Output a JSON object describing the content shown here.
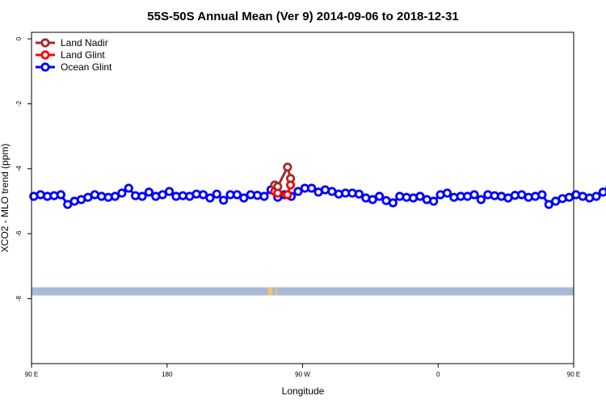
{
  "chart_data": {
    "type": "line",
    "title": "55S-50S Annual Mean (Ver 9)   2014-09-06 to 2018-12-31",
    "xlabel": "Longitude",
    "ylabel": "XCO2 - MLO trend (ppm)",
    "x_tick_labels": [
      "90 E",
      "180",
      "90 W",
      "0",
      "90 E",
      "180"
    ],
    "y_tick_labels": [
      "0",
      "-2",
      "-4",
      "-6",
      "-8"
    ],
    "ylim": [
      -10,
      0.2
    ],
    "xlim": [
      90,
      450
    ],
    "x_ticks": [
      90,
      180,
      270,
      360,
      450,
      540
    ],
    "y_ticks": [
      0,
      -2,
      -4,
      -6,
      -8
    ],
    "legend_position": "top-left",
    "series": [
      {
        "name": "Land Nadir",
        "color": "#a52a2a",
        "points": [
          [
            251.5,
            -4.5
          ],
          [
            253.5,
            -4.55
          ],
          [
            260,
            -3.95
          ],
          [
            262,
            -4.3
          ]
        ]
      },
      {
        "name": "Land Glint",
        "color": "#ff0000",
        "points": [
          [
            251.5,
            -4.7
          ],
          [
            253.5,
            -4.75
          ],
          [
            260,
            -4.8
          ],
          [
            262,
            -4.5
          ]
        ]
      },
      {
        "name": "Ocean Glint",
        "color": "#0000ff",
        "points": [
          [
            91.5,
            -4.85
          ],
          [
            96,
            -4.8
          ],
          [
            100.5,
            -4.85
          ],
          [
            105,
            -4.83
          ],
          [
            109.5,
            -4.8
          ],
          [
            114,
            -5.1
          ],
          [
            118.5,
            -5.0
          ],
          [
            123,
            -4.95
          ],
          [
            127.5,
            -4.88
          ],
          [
            132,
            -4.8
          ],
          [
            136.5,
            -4.85
          ],
          [
            141,
            -4.88
          ],
          [
            145.5,
            -4.85
          ],
          [
            150,
            -4.75
          ],
          [
            154.5,
            -4.6
          ],
          [
            159,
            -4.83
          ],
          [
            163.5,
            -4.85
          ],
          [
            168,
            -4.72
          ],
          [
            172.5,
            -4.85
          ],
          [
            177,
            -4.8
          ],
          [
            181.5,
            -4.7
          ],
          [
            186,
            -4.85
          ],
          [
            190.5,
            -4.83
          ],
          [
            195,
            -4.85
          ],
          [
            199.5,
            -4.78
          ],
          [
            204,
            -4.8
          ],
          [
            208.5,
            -4.9
          ],
          [
            213,
            -4.78
          ],
          [
            217.5,
            -4.97
          ],
          [
            222,
            -4.8
          ],
          [
            226.5,
            -4.8
          ],
          [
            231,
            -4.9
          ],
          [
            235.5,
            -4.8
          ],
          [
            240,
            -4.82
          ],
          [
            244.5,
            -4.85
          ],
          [
            249,
            -4.65
          ],
          [
            253.5,
            -4.88
          ],
          [
            258,
            -4.8
          ],
          [
            262.5,
            -4.85
          ],
          [
            267,
            -4.7
          ],
          [
            271.5,
            -4.6
          ],
          [
            276,
            -4.6
          ],
          [
            280.5,
            -4.72
          ],
          [
            285,
            -4.65
          ],
          [
            289.5,
            -4.7
          ],
          [
            294,
            -4.78
          ],
          [
            298.5,
            -4.75
          ],
          [
            303,
            -4.75
          ],
          [
            307.5,
            -4.78
          ],
          [
            312,
            -4.9
          ],
          [
            316.5,
            -4.95
          ],
          [
            321,
            -4.85
          ],
          [
            325.5,
            -4.98
          ],
          [
            330,
            -5.05
          ],
          [
            334.5,
            -4.85
          ],
          [
            339,
            -4.88
          ],
          [
            343.5,
            -4.9
          ],
          [
            348,
            -4.85
          ],
          [
            352.5,
            -4.95
          ],
          [
            357,
            -5.0
          ],
          [
            361.5,
            -4.8
          ],
          [
            366,
            -4.75
          ],
          [
            370.5,
            -4.88
          ],
          [
            375,
            -4.85
          ],
          [
            379.5,
            -4.85
          ],
          [
            384,
            -4.8
          ],
          [
            388.5,
            -4.95
          ],
          [
            393,
            -4.8
          ],
          [
            397.5,
            -4.83
          ],
          [
            402,
            -4.85
          ],
          [
            406.5,
            -4.9
          ],
          [
            411,
            -4.82
          ],
          [
            415.5,
            -4.8
          ],
          [
            420,
            -4.88
          ],
          [
            424.5,
            -4.85
          ],
          [
            429,
            -4.8
          ],
          [
            433.5,
            -5.1
          ],
          [
            438,
            -5.0
          ],
          [
            442.5,
            -4.92
          ],
          [
            447,
            -4.88
          ],
          [
            451.5,
            -4.8
          ],
          [
            456,
            -4.85
          ],
          [
            460.5,
            -4.9
          ],
          [
            465,
            -4.85
          ],
          [
            469.5,
            -4.72
          ],
          [
            474,
            -4.6
          ],
          [
            478.5,
            -4.83
          ],
          [
            483,
            -4.83
          ],
          [
            487.5,
            -4.72
          ]
        ]
      }
    ],
    "land_band": {
      "y_range": [
        -7.65,
        -7.9
      ],
      "band_color": "#a8bad8",
      "land_color": "#f5c46b",
      "land_segments": [
        [
          247,
          250
        ],
        [
          252,
          253
        ]
      ]
    }
  }
}
